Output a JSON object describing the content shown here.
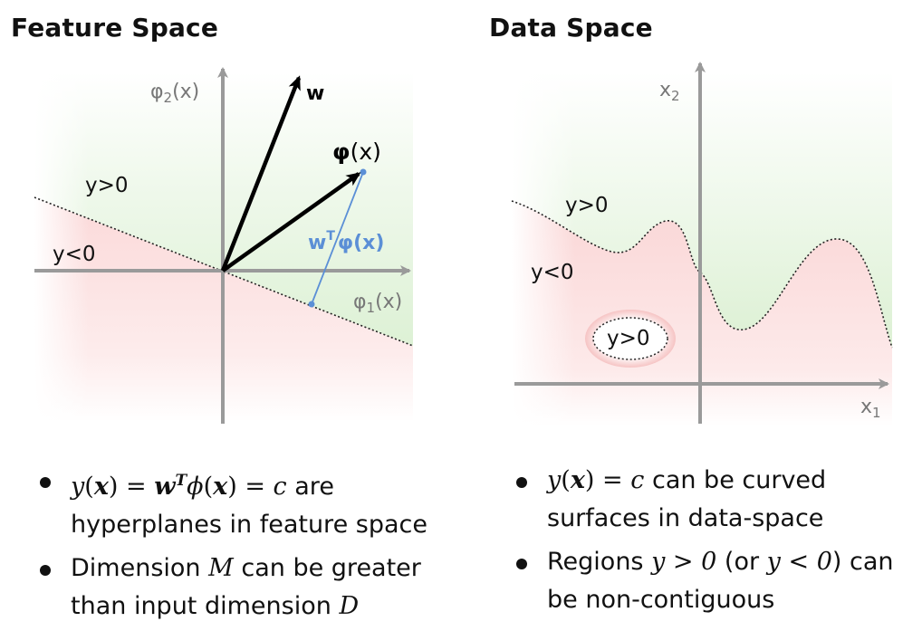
{
  "titles": {
    "left": "Feature Space",
    "right": "Data Space"
  },
  "feature_space": {
    "axis_x": "φ",
    "axis_x_sub": "1",
    "axis_x_arg": "(x)",
    "axis_y": "φ",
    "axis_y_sub": "2",
    "axis_y_arg": "(x)",
    "region_pos": "y>0",
    "region_neg": "y<0",
    "vector_w": "w",
    "vector_phi": "φ",
    "vector_phi_arg": "(x)",
    "projection_w": "w",
    "projection_sup": "T",
    "projection_phi": "φ",
    "projection_arg": "(x)"
  },
  "data_space": {
    "axis_x": "x",
    "axis_x_sub": "1",
    "axis_y": "x",
    "axis_y_sub": "2",
    "region_pos": "y>0",
    "region_neg": "y<0",
    "island": "y>0"
  },
  "bullets_left": {
    "b1_text": "are hyperplanes in feature space",
    "b2_pre": "Dimension",
    "b2_var1": "M",
    "b2_mid": "can be greater than input dimension",
    "b2_var2": "D"
  },
  "bullets_right": {
    "b1_text": "can be curved surfaces in data-space",
    "b2_pre": "Regions",
    "b2_cond1": "y > 0",
    "b2_mid": "(or",
    "b2_cond2": "y < 0",
    "b2_post": ") can be non-contiguous"
  },
  "colors": {
    "positive": "#e3f4dc",
    "negative": "#fbdcdc",
    "projection": "#5b8fd6",
    "axis": "#9a9a9a"
  }
}
